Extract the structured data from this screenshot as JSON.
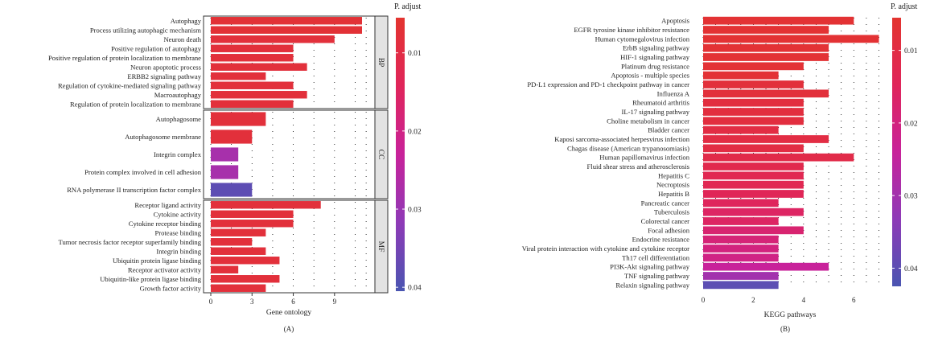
{
  "colors": {
    "scale": [
      "#e3342f",
      "#e0255a",
      "#c8229a",
      "#8e3ab7",
      "#4a55b1"
    ],
    "frame": "#333333",
    "facet_strip": "#e3e3e3",
    "grid": "#000000"
  },
  "chart_data": [
    {
      "type": "bar",
      "orientation": "horizontal",
      "panel_label": "(A)",
      "xlabel": "Gene ontology",
      "x_ticks": [
        "0",
        "3",
        "6",
        "9"
      ],
      "xlim": [
        0,
        11.5
      ],
      "legend_title": "P. adjust",
      "legend_ticks": [
        "0.01",
        "0.02",
        "0.03",
        "0.04"
      ],
      "legend_range": [
        0.0055,
        0.0405
      ],
      "legend_placement": "right",
      "facets": [
        {
          "name": "BP",
          "categories": [
            "Autophagy",
            "Process utilizing autophagic mechanism",
            "Neuron death",
            "Positive regulation of autophagy",
            "Positive regulation of protein localization to membrane",
            "Neuron apoptotic process",
            "ERBB2 signaling pathway",
            "Regulation of cytokine-mediated signaling pathway",
            "Macroautophagy",
            "Regulation of protein localization to membrane"
          ],
          "values": [
            11,
            11,
            9,
            6,
            6,
            7,
            4,
            6,
            7,
            6
          ],
          "p_adjust": [
            0.007,
            0.007,
            0.008,
            0.008,
            0.008,
            0.008,
            0.008,
            0.008,
            0.008,
            0.008
          ]
        },
        {
          "name": "CC",
          "categories": [
            "Autophagosome",
            "Autophagosome membrane",
            "Integrin complex",
            "Protein complex involved in cell adhesion",
            "RNA polymerase II transcription factor complex"
          ],
          "values": [
            4,
            3,
            2,
            2,
            3
          ],
          "p_adjust": [
            0.008,
            0.008,
            0.028,
            0.028,
            0.038
          ]
        },
        {
          "name": "MF",
          "categories": [
            "Receptor ligand activity",
            "Cytokine activity",
            "Cytokine receptor binding",
            "Protease binding",
            "Tumor necrosis factor receptor superfamily binding",
            "Integrin binding",
            "Ubiquitin protein ligase binding",
            "Receptor activator activity",
            "Ubiquitin-like protein ligase binding",
            "Growth factor activity"
          ],
          "values": [
            8,
            6,
            6,
            4,
            3,
            4,
            5,
            2,
            5,
            4
          ],
          "p_adjust": [
            0.008,
            0.008,
            0.008,
            0.008,
            0.008,
            0.008,
            0.008,
            0.008,
            0.008,
            0.008
          ]
        }
      ]
    },
    {
      "type": "bar",
      "orientation": "horizontal",
      "panel_label": "(B)",
      "xlabel": "KEGG pathways",
      "x_ticks": [
        "0",
        "2",
        "4",
        "6"
      ],
      "xlim": [
        0,
        7.2
      ],
      "legend_title": "P. adjust",
      "legend_ticks": [
        "0.01",
        "0.02",
        "0.03",
        "0.04"
      ],
      "legend_range": [
        0.0055,
        0.0425
      ],
      "legend_placement": "right",
      "categories": [
        "Apoptosis",
        "EGFR tyrosine kinase inhibitor resistance",
        "Human cytomegalovirus infection",
        "ErbB signaling pathway",
        "HIF-1 signaling pathway",
        "Platinum drug resistance",
        "Apoptosis - multiple species",
        "PD-L1 expression and PD-1 checkpoint pathway in cancer",
        "Influenza A",
        "Rheumatoid arthritis",
        "IL-17 signaling pathway",
        "Choline metabolism in cancer",
        "Bladder cancer",
        "Kaposi sarcoma-associated herpesvirus infection",
        "Chagas disease (American trypanosomiasis)",
        "Human papillomavirus infection",
        "Fluid shear stress and atherosclerosis",
        "Hepatitis C",
        "Necroptosis",
        "Hepatitis B",
        "Pancreatic cancer",
        "Tuberculosis",
        "Colorectal cancer",
        "Focal adhesion",
        "Endocrine resistance",
        "Viral protein interaction with cytokine and cytokine receptor",
        "Th17 cell differentiation",
        "PI3K-Akt signaling pathway",
        "TNF signaling pathway",
        "Relaxin signaling pathway"
      ],
      "values": [
        6,
        5,
        7,
        5,
        5,
        4,
        3,
        4,
        5,
        4,
        4,
        4,
        3,
        5,
        4,
        6,
        4,
        4,
        4,
        4,
        3,
        4,
        3,
        4,
        3,
        3,
        3,
        5,
        3,
        3
      ],
      "p_adjust": [
        0.0065,
        0.0065,
        0.0065,
        0.0068,
        0.0068,
        0.007,
        0.007,
        0.008,
        0.008,
        0.009,
        0.009,
        0.009,
        0.01,
        0.01,
        0.01,
        0.011,
        0.012,
        0.013,
        0.013,
        0.014,
        0.015,
        0.016,
        0.016,
        0.018,
        0.019,
        0.02,
        0.021,
        0.024,
        0.03,
        0.04
      ]
    }
  ]
}
